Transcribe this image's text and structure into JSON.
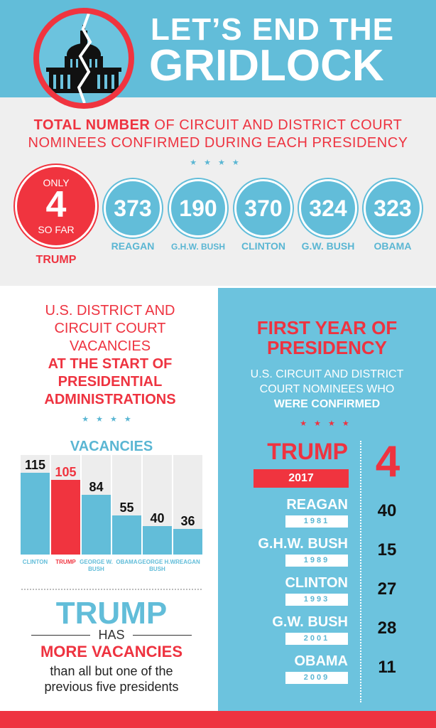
{
  "header": {
    "line1": "LET’S END THE",
    "line2": "GRIDLOCK"
  },
  "section1": {
    "title_bold": "TOTAL NUMBER",
    "title_rest": " OF CIRCUIT AND DISTRICT COURT",
    "title_line2": "NOMINEES CONFIRMED DURING EACH PRESIDENCY",
    "stars": "★★★★",
    "trump": {
      "top": "ONLY",
      "value": "4",
      "bottom": "SO FAR",
      "name": "TRUMP"
    },
    "presidents": [
      {
        "value": "373",
        "name": "REAGAN"
      },
      {
        "value": "190",
        "name": "G.H.W. BUSH"
      },
      {
        "value": "370",
        "name": "CLINTON"
      },
      {
        "value": "324",
        "name": "G.W. BUSH"
      },
      {
        "value": "323",
        "name": "OBAMA"
      }
    ]
  },
  "left": {
    "title_l1": "U.S. DISTRICT AND",
    "title_l2": "CIRCUIT COURT",
    "title_l3": "VACANCIES",
    "title_b1": "AT THE START OF",
    "title_b2": "PRESIDENTIAL",
    "title_b3": "ADMINISTRATIONS",
    "stars": "★★★★",
    "has": "HAS",
    "trump_big": "TRUMP",
    "more": "MORE VACANCIES",
    "sub1": "than all but one of the",
    "sub2": "previous five presidents"
  },
  "right": {
    "title1": "FIRST YEAR OF",
    "title2": "PRESIDENCY",
    "sub1": "U.S. CIRCUIT AND DISTRICT",
    "sub2": "COURT NOMINEES WHO",
    "sub3": "WERE CONFIRMED",
    "stars": "★★★★",
    "trump": {
      "name": "TRUMP",
      "year": "2017",
      "value": "4"
    },
    "rows": [
      {
        "name": "REAGAN",
        "year": "1981",
        "value": "40"
      },
      {
        "name": "G.H.W. BUSH",
        "year": "1989",
        "value": "15"
      },
      {
        "name": "CLINTON",
        "year": "1993",
        "value": "27"
      },
      {
        "name": "G.W. BUSH",
        "year": "2001",
        "value": "28"
      },
      {
        "name": "OBAMA",
        "year": "2009",
        "value": "11"
      }
    ]
  },
  "chart_data": {
    "type": "bar",
    "title": "VACANCIES",
    "categories": [
      "CLINTON",
      "TRUMP",
      "GEORGE W. BUSH",
      "OBAMA",
      "GEORGE H.W. BUSH",
      "REAGAN"
    ],
    "values": [
      115,
      105,
      84,
      55,
      40,
      36
    ],
    "highlight": "TRUMP",
    "ylim": [
      0,
      140
    ],
    "colors": {
      "default": "#62bdd9",
      "highlight": "#f0343f"
    }
  }
}
